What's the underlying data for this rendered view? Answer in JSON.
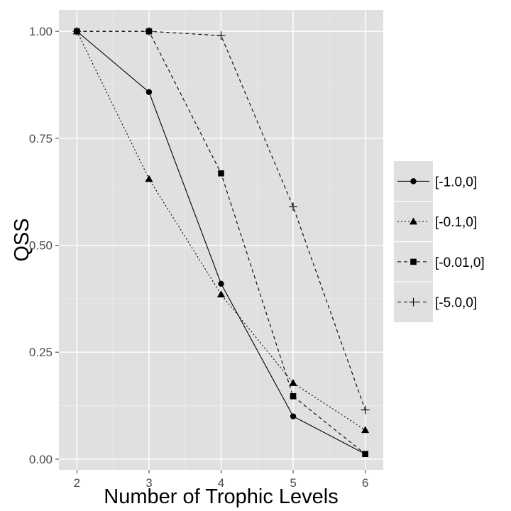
{
  "chart_data": {
    "type": "line",
    "title": "",
    "xlabel": "Number of Trophic Levels",
    "ylabel": "QSS",
    "x": [
      2,
      3,
      4,
      5,
      6
    ],
    "xlim": [
      1.75,
      6.25
    ],
    "ylim": [
      -0.025,
      1.05
    ],
    "xticks": [
      2,
      3,
      4,
      5,
      6
    ],
    "xtick_labels": [
      "2",
      "3",
      "4",
      "5",
      "6"
    ],
    "yticks": [
      0,
      0.25,
      0.5,
      0.75,
      1.0
    ],
    "ytick_labels": [
      "0.00",
      "0.25",
      "0.50",
      "0.75",
      "1.00"
    ],
    "grid": true,
    "legend_position": "right",
    "series": [
      {
        "name": "[-1.0,0]",
        "values": [
          1.0,
          0.858,
          0.41,
          0.1,
          0.012
        ],
        "line": "solid",
        "marker": "circle"
      },
      {
        "name": "[-0.1,0]",
        "values": [
          1.0,
          0.655,
          0.385,
          0.178,
          0.068
        ],
        "line": "dotted",
        "marker": "triangle"
      },
      {
        "name": "[-0.01,0]",
        "values": [
          1.0,
          1.0,
          0.668,
          0.147,
          0.012
        ],
        "line": "dashed",
        "marker": "square"
      },
      {
        "name": "[-5.0,0]",
        "values": [
          1.0,
          1.0,
          0.99,
          0.59,
          0.115
        ],
        "line": "dashed",
        "marker": "plus"
      }
    ]
  }
}
